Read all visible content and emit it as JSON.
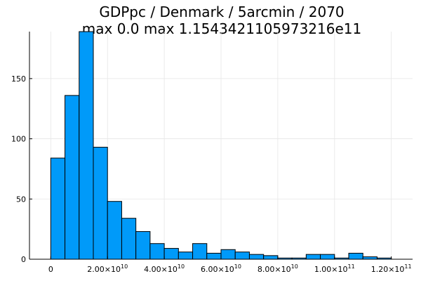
{
  "chart_data": {
    "type": "histogram",
    "title_line1": "GDPpc / Denmark / 5arcmin / 2070",
    "title_line2": "max 0.0  max 1.1543421105973216e11",
    "xlabel": "",
    "ylabel": "",
    "bar_color": "#009af9",
    "edge_color": "#000000",
    "grid": true,
    "legend": false,
    "xlim": [
      -7500000000,
      127500000000
    ],
    "ylim": [
      0,
      189
    ],
    "bin_width": 5000000000,
    "bin_edges": [
      0,
      5000000000,
      10000000000,
      15000000000,
      20000000000,
      25000000000,
      30000000000,
      35000000000,
      40000000000,
      45000000000,
      50000000000,
      55000000000,
      60000000000,
      65000000000,
      70000000000,
      75000000000,
      80000000000,
      85000000000,
      90000000000,
      95000000000,
      100000000000,
      105000000000,
      110000000000,
      115000000000,
      120000000000
    ],
    "values": [
      84,
      136,
      189,
      93,
      48,
      34,
      23,
      13,
      9,
      6,
      13,
      5,
      8,
      6,
      4,
      3,
      1,
      1,
      4,
      4,
      1,
      5,
      2,
      1
    ],
    "y_ticks": [
      {
        "value": 0,
        "label": "0"
      },
      {
        "value": 50,
        "label": "50"
      },
      {
        "value": 100,
        "label": "100"
      },
      {
        "value": 150,
        "label": "150"
      }
    ],
    "x_ticks": [
      {
        "value": 0,
        "mantissa": "0",
        "exponent": ""
      },
      {
        "value": 20000000000,
        "mantissa": "2.00×10",
        "exponent": "10"
      },
      {
        "value": 40000000000,
        "mantissa": "4.00×10",
        "exponent": "10"
      },
      {
        "value": 60000000000,
        "mantissa": "6.00×10",
        "exponent": "10"
      },
      {
        "value": 80000000000,
        "mantissa": "8.00×10",
        "exponent": "10"
      },
      {
        "value": 100000000000,
        "mantissa": "1.00×10",
        "exponent": "11"
      },
      {
        "value": 120000000000,
        "mantissa": "1.20×10",
        "exponent": "11"
      }
    ]
  }
}
